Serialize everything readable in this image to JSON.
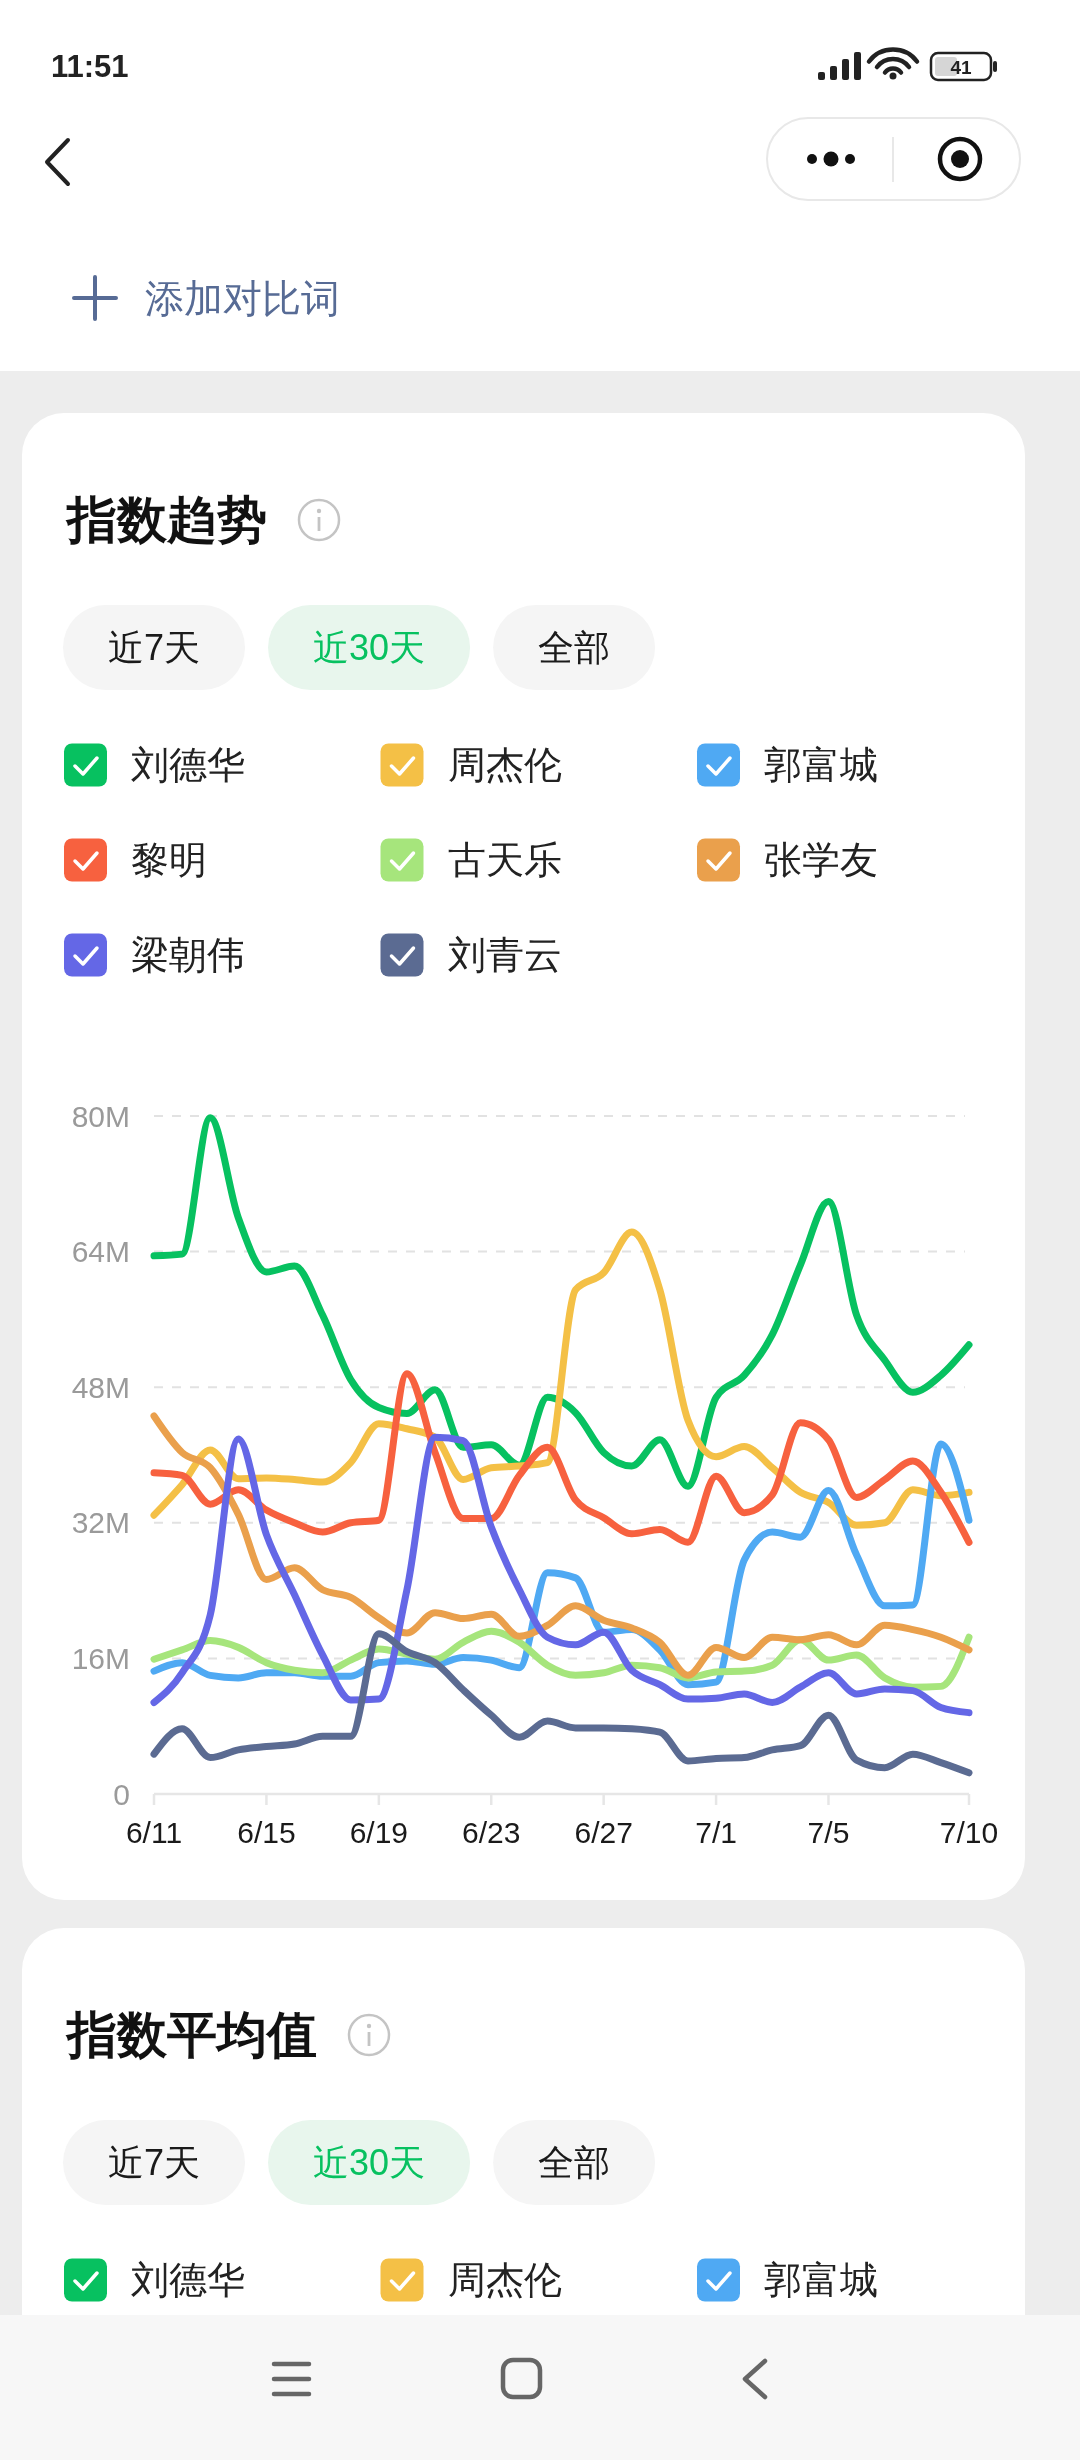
{
  "chart_data": [
    {
      "type": "line",
      "title": "指数趋势",
      "annotations": [
        "11:51",
        "41",
        "添加对比词",
        "近7天",
        "近30天",
        "全部"
      ],
      "x": [
        "--06-11",
        "--06-12",
        "--06-13",
        "--06-14",
        "--06-15",
        "--06-16",
        "--06-17",
        "--06-18",
        "--06-19",
        "--06-20",
        "--06-21",
        "--06-22",
        "--06-23",
        "--06-24",
        "--06-25",
        "--06-26",
        "--06-27",
        "--06-28",
        "--06-29",
        "--06-30",
        "--07-01",
        "--07-02",
        "--07-03",
        "--07-04",
        "--07-05",
        "--07-06",
        "--07-07",
        "--07-08",
        "--07-09",
        "--07-10"
      ],
      "xlim": [
        "--06-11",
        "--07-10"
      ],
      "xticks": [
        {
          "value": "--06-11",
          "label": "6/11"
        },
        {
          "value": "--06-15",
          "label": "6/15"
        },
        {
          "value": "--06-19",
          "label": "6/19"
        },
        {
          "value": "--06-23",
          "label": "6/23"
        },
        {
          "value": "--06-27",
          "label": "6/27"
        },
        {
          "value": "--07-01",
          "label": "7/1"
        },
        {
          "value": "--07-05",
          "label": "7/5"
        },
        {
          "value": "--07-10",
          "label": "7/10"
        }
      ],
      "ylim": [
        0,
        80
      ],
      "yticks": [
        0,
        {
          "value": 16,
          "label": "16M"
        },
        {
          "value": 32,
          "label": "32M"
        },
        {
          "value": 48,
          "label": "48M"
        },
        {
          "value": 64,
          "label": "64M"
        },
        {
          "value": 80,
          "label": "80M"
        }
      ],
      "grid": "y",
      "legend": "top",
      "line_style": "solid",
      "series": [
        {
          "name": "刘德华",
          "color": "#07c160",
          "values": [
            63.5,
            63.7,
            79.8,
            68.0,
            61.6,
            62.3,
            56.5,
            48.9,
            45.6,
            44.9,
            47.7,
            40.9,
            41.2,
            38.8,
            46.8,
            45.0,
            40.3,
            38.7,
            41.8,
            36.3,
            46.8,
            49.4,
            54.2,
            62.4,
            69.9,
            56.5,
            51.2,
            47.4,
            49.4,
            53.0
          ]
        },
        {
          "name": "周杰伦",
          "color": "#f4c046",
          "values": [
            32.9,
            36.5,
            40.6,
            37.2,
            37.3,
            37.1,
            36.8,
            39.1,
            43.7,
            43.1,
            42.1,
            37.1,
            38.5,
            38.7,
            39.1,
            59.5,
            61.5,
            66.3,
            59.5,
            44.1,
            39.8,
            41.0,
            38.5,
            35.6,
            34.4,
            31.7,
            32.0,
            35.9,
            35.2,
            35.6
          ]
        },
        {
          "name": "郭富城",
          "color": "#4fa9f3",
          "values": [
            14.5,
            15.5,
            14.0,
            13.7,
            14.3,
            14.3,
            13.9,
            13.9,
            15.5,
            15.7,
            15.3,
            16.1,
            15.8,
            14.9,
            26.1,
            25.5,
            19.1,
            19.4,
            17.0,
            12.9,
            13.2,
            27.6,
            30.9,
            30.3,
            35.8,
            28.2,
            22.2,
            22.3,
            41.3,
            32.3
          ]
        },
        {
          "name": "黎明",
          "color": "#f7613f",
          "values": [
            37.9,
            37.6,
            34.2,
            35.9,
            33.5,
            32.0,
            30.9,
            32.0,
            32.3,
            49.6,
            40.3,
            32.5,
            32.5,
            37.6,
            40.9,
            34.7,
            32.6,
            30.7,
            31.2,
            29.7,
            37.5,
            33.2,
            35.3,
            43.8,
            41.8,
            35.0,
            37.1,
            39.3,
            35.6,
            29.7
          ]
        },
        {
          "name": "古天乐",
          "color": "#a6e57c",
          "values": [
            15.9,
            17.0,
            18.1,
            17.3,
            15.5,
            14.6,
            14.3,
            15.8,
            17.1,
            16.5,
            15.9,
            17.9,
            19.2,
            17.9,
            15.2,
            14.0,
            14.3,
            15.2,
            14.9,
            13.7,
            14.4,
            14.5,
            15.2,
            18.2,
            15.8,
            16.4,
            13.7,
            12.6,
            12.7,
            18.5
          ]
        },
        {
          "name": "张学友",
          "color": "#eaa04c",
          "values": [
            44.6,
            40.3,
            38.5,
            33.0,
            25.3,
            26.7,
            24.1,
            23.2,
            20.8,
            19.0,
            21.4,
            20.7,
            21.2,
            18.6,
            19.9,
            22.2,
            20.5,
            19.6,
            17.9,
            14.0,
            17.3,
            16.1,
            18.5,
            18.2,
            18.8,
            17.6,
            19.9,
            19.4,
            18.5,
            17.0
          ]
        },
        {
          "name": "梁朝伟",
          "color": "#6467e6",
          "values": [
            10.8,
            14.3,
            21.1,
            41.9,
            30.6,
            23.5,
            16.4,
            11.1,
            11.2,
            24.1,
            42.1,
            41.7,
            31.5,
            24.1,
            18.5,
            17.6,
            19.1,
            14.6,
            12.9,
            11.2,
            11.3,
            11.8,
            10.8,
            12.6,
            14.3,
            11.8,
            12.4,
            12.2,
            10.2,
            9.6
          ]
        },
        {
          "name": "刘青云",
          "color": "#5b6b92",
          "values": [
            4.7,
            7.7,
            4.3,
            5.2,
            5.6,
            5.9,
            6.8,
            6.8,
            18.9,
            16.8,
            15.5,
            12.3,
            9.3,
            6.7,
            8.6,
            7.8,
            7.8,
            7.7,
            7.3,
            3.9,
            4.2,
            4.3,
            5.2,
            5.7,
            9.3,
            4.0,
            3.1,
            4.7,
            3.7,
            2.5
          ]
        }
      ]
    },
    {
      "type": "other",
      "title": "指数平均值",
      "annotations": [
        "近7天",
        "近30天",
        "全部"
      ],
      "legend": "top",
      "series": [
        {
          "name": "刘德华",
          "color": "#07c160"
        },
        {
          "name": "周杰伦",
          "color": "#f4c046"
        },
        {
          "name": "郭富城",
          "color": "#4fa9f3"
        }
      ]
    }
  ]
}
